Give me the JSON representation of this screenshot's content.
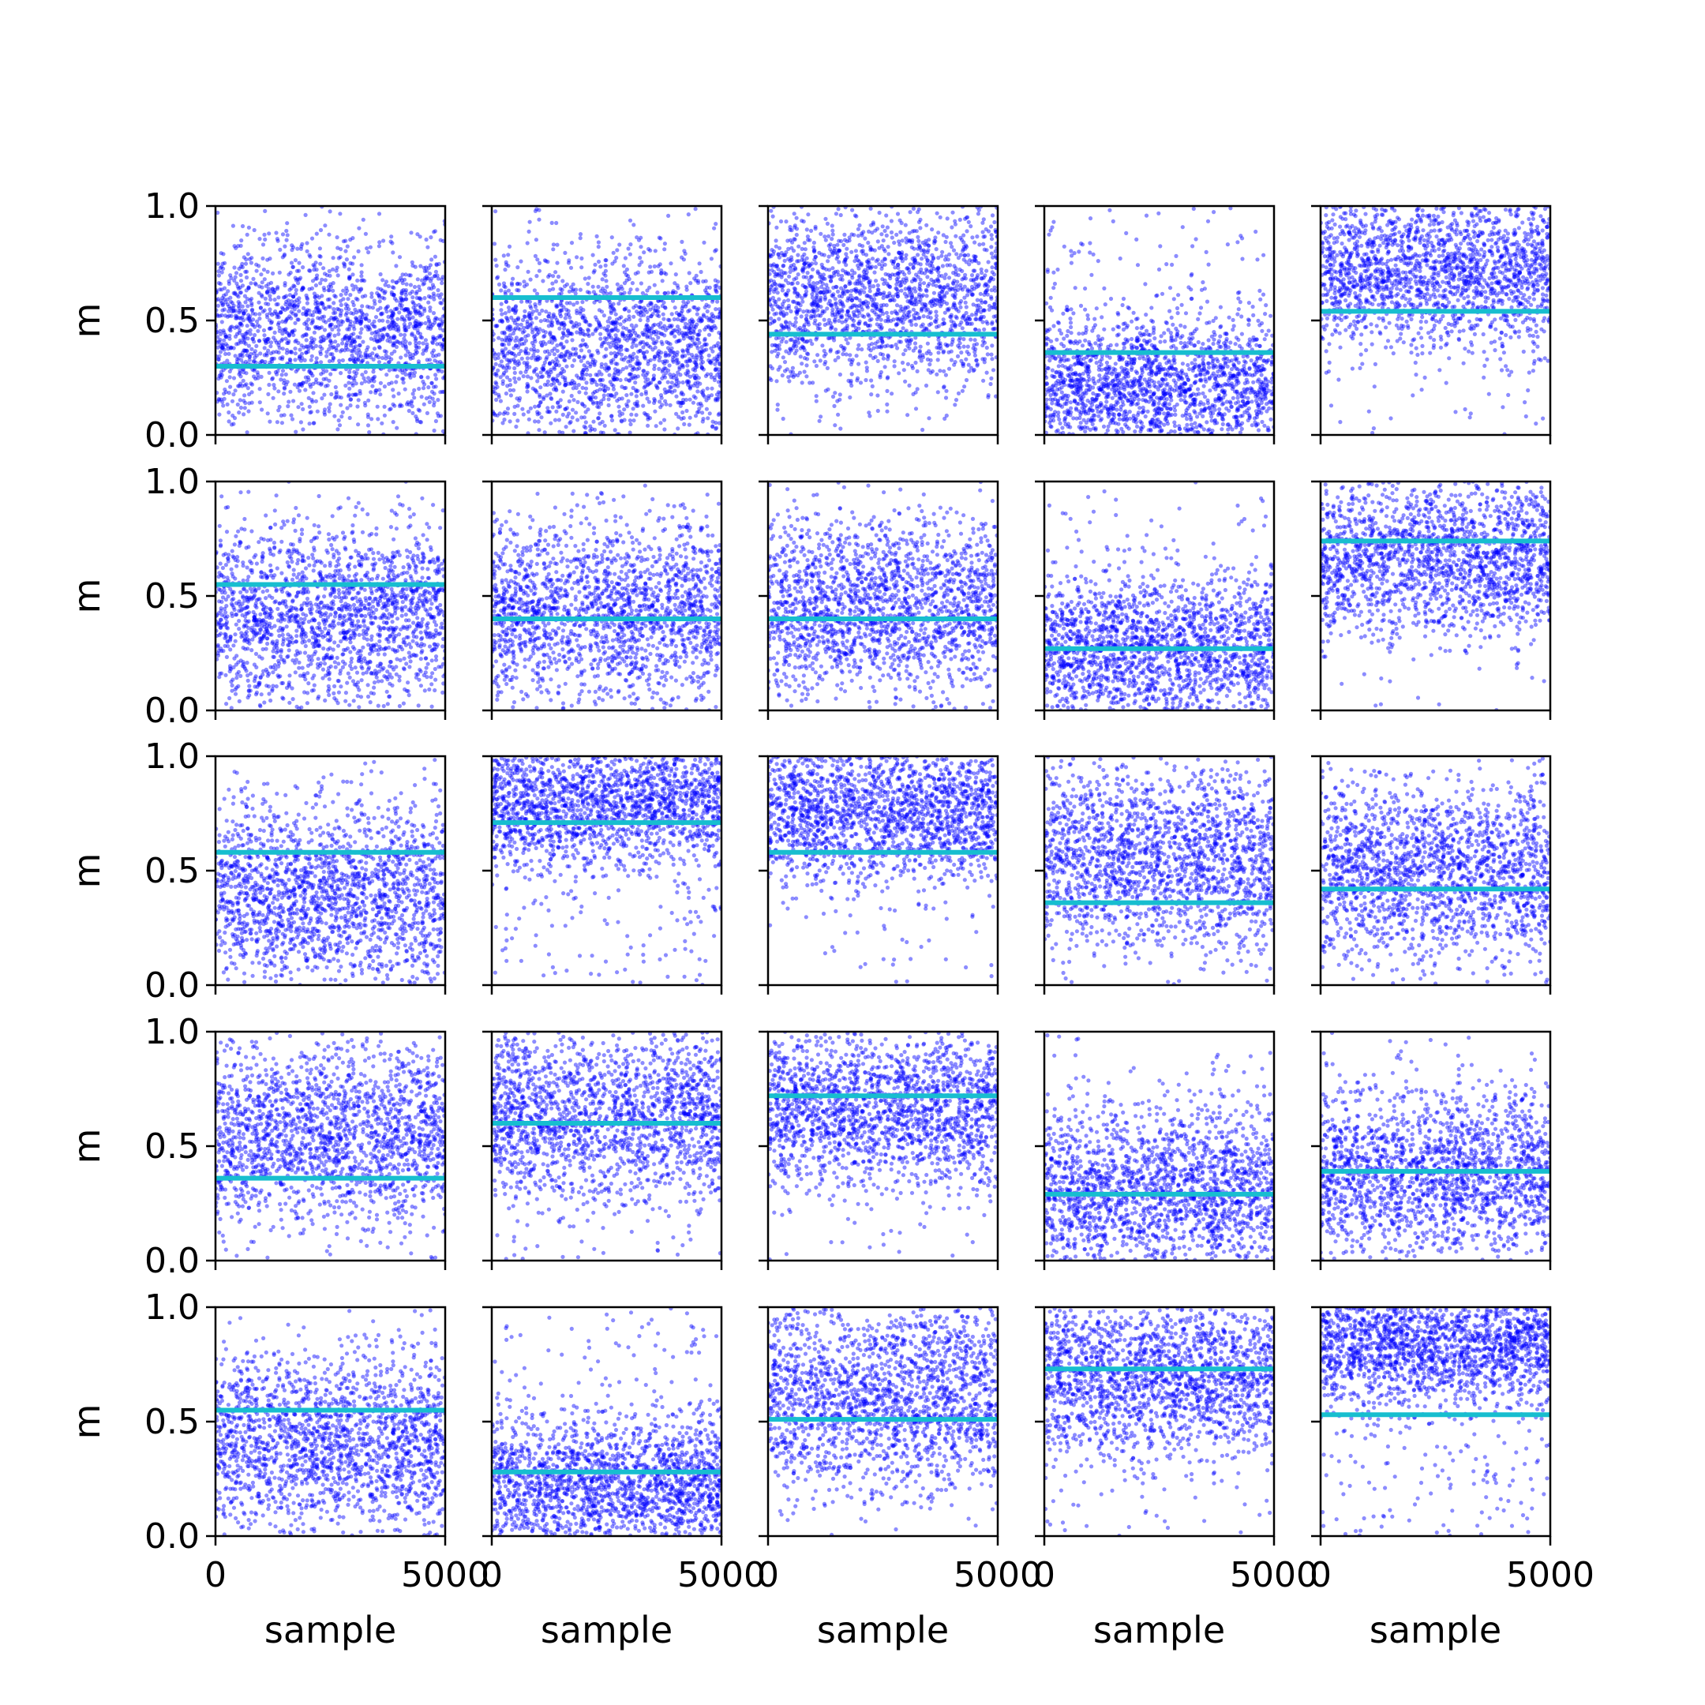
{
  "chart_data": {
    "type": "scatter",
    "layout": "5x5 grid of subplots",
    "xlabel": "sample",
    "ylabel": "m",
    "xlim": [
      0,
      5000
    ],
    "ylim": [
      0,
      1
    ],
    "x_ticks": [
      0,
      5000
    ],
    "y_ticks": [
      0.0,
      0.5,
      1.0
    ],
    "x_tick_labels": [
      "0",
      "5000"
    ],
    "y_tick_labels": [
      "0.0",
      "0.5",
      "1.0"
    ],
    "points_per_panel": 5000,
    "grid": false,
    "colors": {
      "points": "#0000ff",
      "reference_line": "#17becf",
      "axes": "#000000"
    },
    "panels": [
      {
        "row": 1,
        "col": 1,
        "reference_value": 0.3,
        "scatter_center": 0.45,
        "scatter_spread": 0.2
      },
      {
        "row": 1,
        "col": 2,
        "reference_value": 0.6,
        "scatter_center": 0.38,
        "scatter_spread": 0.21
      },
      {
        "row": 1,
        "col": 3,
        "reference_value": 0.44,
        "scatter_center": 0.6,
        "scatter_spread": 0.2
      },
      {
        "row": 1,
        "col": 4,
        "reference_value": 0.36,
        "scatter_center": 0.22,
        "scatter_spread": 0.15
      },
      {
        "row": 1,
        "col": 5,
        "reference_value": 0.54,
        "scatter_center": 0.72,
        "scatter_spread": 0.17
      },
      {
        "row": 2,
        "col": 1,
        "reference_value": 0.55,
        "scatter_center": 0.42,
        "scatter_spread": 0.2
      },
      {
        "row": 2,
        "col": 2,
        "reference_value": 0.4,
        "scatter_center": 0.43,
        "scatter_spread": 0.2
      },
      {
        "row": 2,
        "col": 3,
        "reference_value": 0.4,
        "scatter_center": 0.45,
        "scatter_spread": 0.2
      },
      {
        "row": 2,
        "col": 4,
        "reference_value": 0.27,
        "scatter_center": 0.27,
        "scatter_spread": 0.17
      },
      {
        "row": 2,
        "col": 5,
        "reference_value": 0.74,
        "scatter_center": 0.67,
        "scatter_spread": 0.17
      },
      {
        "row": 3,
        "col": 1,
        "reference_value": 0.58,
        "scatter_center": 0.4,
        "scatter_spread": 0.2
      },
      {
        "row": 3,
        "col": 2,
        "reference_value": 0.71,
        "scatter_center": 0.8,
        "scatter_spread": 0.15
      },
      {
        "row": 3,
        "col": 3,
        "reference_value": 0.58,
        "scatter_center": 0.76,
        "scatter_spread": 0.16
      },
      {
        "row": 3,
        "col": 4,
        "reference_value": 0.36,
        "scatter_center": 0.55,
        "scatter_spread": 0.21
      },
      {
        "row": 3,
        "col": 5,
        "reference_value": 0.42,
        "scatter_center": 0.5,
        "scatter_spread": 0.2
      },
      {
        "row": 4,
        "col": 1,
        "reference_value": 0.36,
        "scatter_center": 0.55,
        "scatter_spread": 0.2
      },
      {
        "row": 4,
        "col": 2,
        "reference_value": 0.6,
        "scatter_center": 0.63,
        "scatter_spread": 0.2
      },
      {
        "row": 4,
        "col": 3,
        "reference_value": 0.72,
        "scatter_center": 0.66,
        "scatter_spread": 0.18
      },
      {
        "row": 4,
        "col": 4,
        "reference_value": 0.29,
        "scatter_center": 0.3,
        "scatter_spread": 0.18
      },
      {
        "row": 4,
        "col": 5,
        "reference_value": 0.39,
        "scatter_center": 0.38,
        "scatter_spread": 0.19
      },
      {
        "row": 5,
        "col": 1,
        "reference_value": 0.55,
        "scatter_center": 0.4,
        "scatter_spread": 0.2
      },
      {
        "row": 5,
        "col": 2,
        "reference_value": 0.28,
        "scatter_center": 0.22,
        "scatter_spread": 0.16
      },
      {
        "row": 5,
        "col": 3,
        "reference_value": 0.51,
        "scatter_center": 0.6,
        "scatter_spread": 0.2
      },
      {
        "row": 5,
        "col": 4,
        "reference_value": 0.73,
        "scatter_center": 0.7,
        "scatter_spread": 0.18
      },
      {
        "row": 5,
        "col": 5,
        "reference_value": 0.53,
        "scatter_center": 0.84,
        "scatter_spread": 0.13
      }
    ]
  }
}
